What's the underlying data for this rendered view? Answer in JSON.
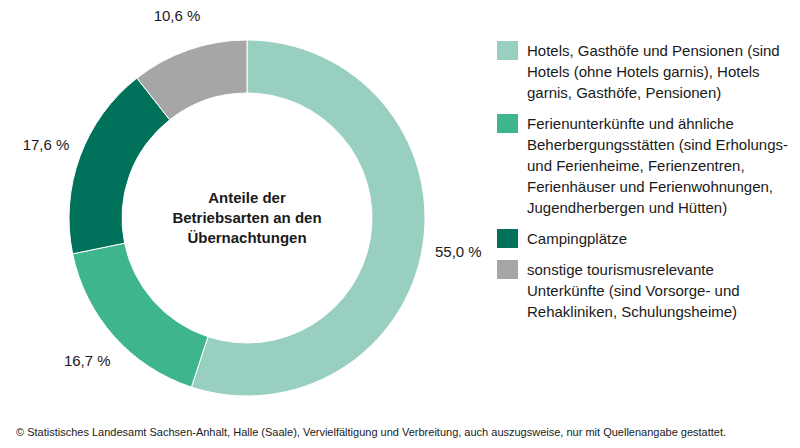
{
  "chart_data": {
    "type": "donut",
    "title": "Anteile der Betriebsarten an den Übernachtungen",
    "categories": [
      "Hotels, Gasthöfe und Pensionen (sind Hotels (ohne Hotels garnis), Hotels garnis, Gasthöfe, Pensionen)",
      "Ferienunterkünfte und ähnliche Beherbergungsstätten (sind Erholungs- und Ferienheime, Ferienzentren, Ferienhäuser und Ferienwohnungen, Jugendherbergen und Hütten)",
      "Campingplätze",
      "sonstige tourismusrelevante Unterkünfte (sind Vorsorge- und Rehakliniken, Schulungsheime)"
    ],
    "values": [
      55.0,
      16.7,
      17.6,
      10.6
    ],
    "value_labels": [
      "55,0 %",
      "16,7 %",
      "17,6 %",
      "10,6 %"
    ],
    "colors": [
      "#99cfc1",
      "#3fb58e",
      "#00715a",
      "#a6a6a6"
    ],
    "data_labels": true,
    "legend": "right",
    "source": "© Statistisches Landesamt Sachsen-Anhalt, Halle (Saale), Vervielfältigung und Verbreitung, auch auszugsweise, nur mit Quellenangabe gestattet."
  }
}
